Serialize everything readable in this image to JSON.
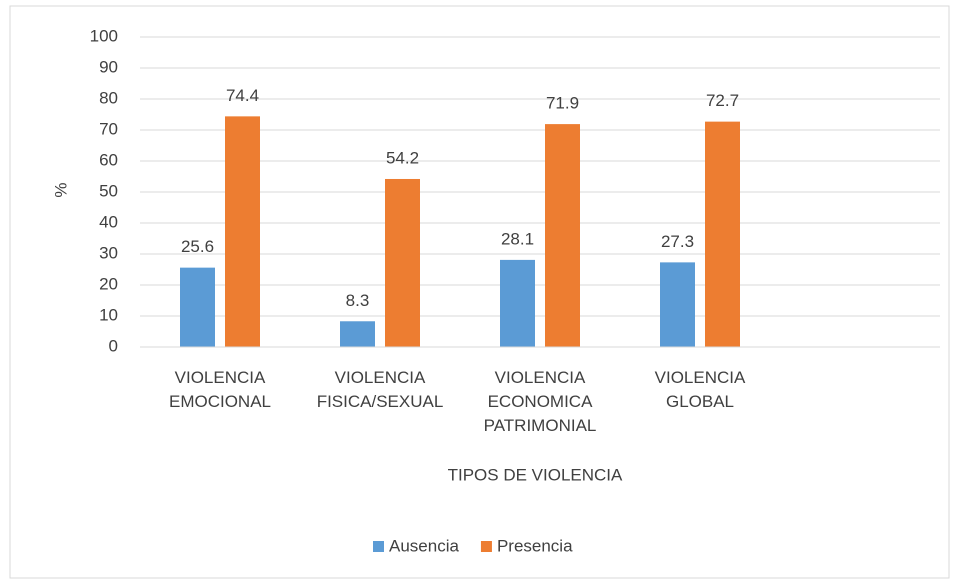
{
  "chart_data": {
    "type": "bar",
    "categories": [
      "VIOLENCIA EMOCIONAL",
      "VIOLENCIA FISICA/SEXUAL",
      "VIOLENCIA ECONOMICA PATRIMONIAL",
      "VIOLENCIA GLOBAL",
      null
    ],
    "series": [
      {
        "name": "Ausencia",
        "color": "#5b9bd5",
        "values": [
          25.6,
          8.3,
          28.1,
          27.3,
          null
        ]
      },
      {
        "name": "Presencia",
        "color": "#ed7d31",
        "values": [
          74.4,
          54.2,
          71.9,
          72.7,
          null
        ]
      }
    ],
    "ylabel": "%",
    "xlabel": "TIPOS DE VIOLENCIA",
    "ylim": [
      0,
      100
    ],
    "yticks": [
      0,
      10,
      20,
      30,
      40,
      50,
      60,
      70,
      80,
      90,
      100
    ],
    "grid": true,
    "legend": "bottom"
  }
}
